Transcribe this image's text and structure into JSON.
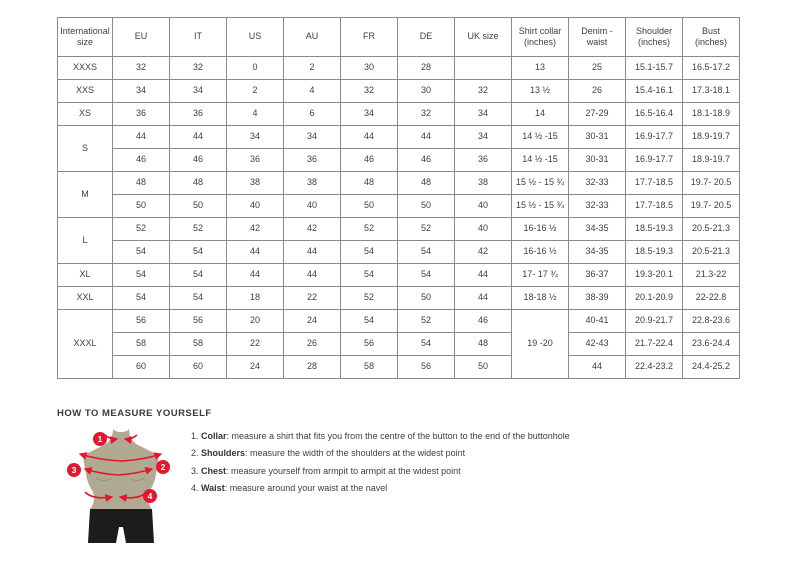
{
  "table": {
    "headers": [
      "International size",
      "EU",
      "IT",
      "US",
      "AU",
      "FR",
      "DE",
      "UK size",
      "Shirt collar (inches)",
      "Denim - waist",
      "Shoulder (inches)",
      "Bust (inches)"
    ],
    "rows": [
      [
        "XXXS",
        "32",
        "32",
        "0",
        "2",
        "30",
        "28",
        "",
        "13",
        "25",
        "15.1-15.7",
        "16.5-17.2"
      ],
      [
        "XXS",
        "34",
        "34",
        "2",
        "4",
        "32",
        "30",
        "32",
        "13 ½",
        "26",
        "15.4-16.1",
        "17.3-18.1"
      ],
      [
        "XS",
        "36",
        "36",
        "4",
        "6",
        "34",
        "32",
        "34",
        "14",
        "27-29",
        "16.5-16.4",
        "18.1-18.9"
      ],
      [
        {
          "text": "S",
          "rowspan": 2
        },
        "44",
        "44",
        "34",
        "34",
        "44",
        "44",
        "34",
        "14 ½ -15",
        "30-31",
        "16.9-17.7",
        "18.9-19.7"
      ],
      [
        "46",
        "46",
        "36",
        "36",
        "46",
        "46",
        "36",
        "14 ½ -15",
        "30-31",
        "16.9-17.7",
        "18.9-19.7"
      ],
      [
        {
          "text": "M",
          "rowspan": 2
        },
        "48",
        "48",
        "38",
        "38",
        "48",
        "48",
        "38",
        "15 ½ - 15 ¾",
        "32-33",
        "17.7-18.5",
        "19.7- 20.5"
      ],
      [
        "50",
        "50",
        "40",
        "40",
        "50",
        "50",
        "40",
        "15 ½ - 15 ¾",
        "32-33",
        "17.7-18.5",
        "19.7- 20.5"
      ],
      [
        {
          "text": "L",
          "rowspan": 2
        },
        "52",
        "52",
        "42",
        "42",
        "52",
        "52",
        "40",
        "16-16 ½",
        "34-35",
        "18.5-19.3",
        "20.5-21.3"
      ],
      [
        "54",
        "54",
        "44",
        "44",
        "54",
        "54",
        "42",
        "16-16 ½",
        "34-35",
        "18.5-19.3",
        "20.5-21.3"
      ],
      [
        "XL",
        "54",
        "54",
        "44",
        "44",
        "54",
        "54",
        "44",
        "17- 17 ¾",
        "36-37",
        "19.3-20.1",
        "21.3-22"
      ],
      [
        "XXL",
        "54",
        "54",
        "18",
        "22",
        "52",
        "50",
        "44",
        "18-18 ½",
        "38-39",
        "20.1-20.9",
        "22-22.8"
      ],
      [
        {
          "text": "XXXL",
          "rowspan": 3
        },
        "56",
        "56",
        "20",
        "24",
        "54",
        "52",
        "46",
        {
          "text": "19 -20",
          "rowspan": 3
        },
        "40-41",
        "20.9-21.7",
        "22.8-23.6"
      ],
      [
        "58",
        "58",
        "22",
        "26",
        "56",
        "54",
        "48",
        "42-43",
        "21.7-22.4",
        "23.6-24.4"
      ],
      [
        "60",
        "60",
        "24",
        "28",
        "58",
        "56",
        "50",
        "44",
        "22.4-23.2",
        "24.4-25.2"
      ]
    ]
  },
  "measure": {
    "heading": "HOW TO MEASURE YOURSELF",
    "items": [
      {
        "number": "1.",
        "term": "Collar",
        "desc": "measure a shirt that fits you from the centre of the button to the end of the buttonhole"
      },
      {
        "number": "2.",
        "term": "Shoulders",
        "desc": "measure the width of the shoulders at the widest point"
      },
      {
        "number": "3.",
        "term": "Chest",
        "desc": "measure yourself from armpit to armpit at the widest point"
      },
      {
        "number": "4.",
        "term": "Waist",
        "desc": "measure around your waist at the navel"
      }
    ],
    "figure_labels": {
      "collar": "1",
      "shoulders": "2",
      "chest": "3",
      "waist": "4"
    }
  },
  "colors": {
    "accent_red": "#e1182f",
    "mannequin_body": "#b1aa92",
    "mannequin_shade": "#9a937b",
    "shorts_black": "#1c1c1c",
    "table_border": "#8a8a8a",
    "text": "#3e3e3e"
  }
}
